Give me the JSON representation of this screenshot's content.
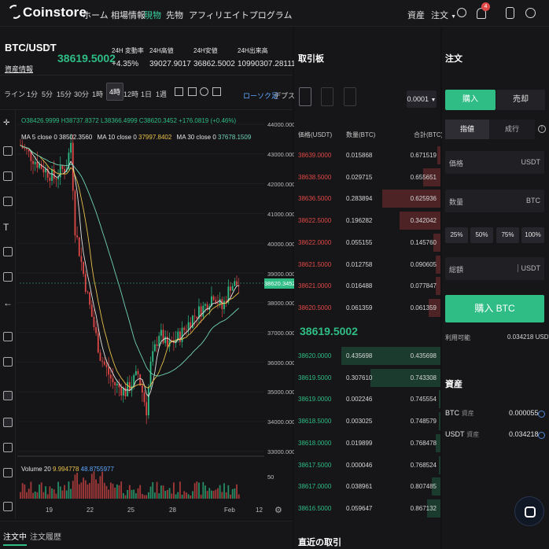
{
  "nav": {
    "logo": "Coinstore",
    "items": [
      "ホーム",
      "相場情報",
      "現物",
      "先物",
      "アフィリエイトプログラム"
    ],
    "active_index": 2,
    "right": {
      "assets": "資産",
      "orders": "注文",
      "notification_count": "4"
    }
  },
  "market": {
    "pair": "BTC/USDT",
    "asset_info": "資産情報",
    "last_price": "38619.5002",
    "stats": [
      {
        "label": "24H 変動率",
        "value": "+4.35%"
      },
      {
        "label": "24H高値",
        "value": "39027.9017"
      },
      {
        "label": "24H安値",
        "value": "36862.5002"
      },
      {
        "label": "24H出来高",
        "value": "10990307.281116"
      }
    ]
  },
  "toolbar": {
    "timeframes": [
      "ライン",
      "1分",
      "5分",
      "15分",
      "30分",
      "1時",
      "4時",
      "12時",
      "1日",
      "1週"
    ],
    "active_index": 6,
    "chart_type": "ローソク足",
    "depth": "デプス"
  },
  "chart": {
    "ohlc": "O38426.9999  H38737.8372  L38366.4999  C38620.3452  +176.0819 (+0.46%)",
    "ma": [
      {
        "label": "MA 5 close 0",
        "value": "38502.3560",
        "color": "#e4e4e4"
      },
      {
        "label": "MA 10 close 0",
        "value": "37997.8402",
        "color": "#e8c14a"
      },
      {
        "label": "MA 30 close 0",
        "value": "37678.1509",
        "color": "#6fd3b7"
      }
    ],
    "volume": {
      "label": "Volume 20",
      "v1": "9.994778",
      "v2": "48.8755977"
    },
    "y_ticks": [
      "44000.0000",
      "43000.0000",
      "42000.0000",
      "41000.0000",
      "40000.0000",
      "39000.0000",
      "38000.0000",
      "37000.0000",
      "36000.0000",
      "35000.0000",
      "34000.0000",
      "33000.0000"
    ],
    "current_price_tag": "38620.3452",
    "vol_ticks": [
      "50"
    ],
    "x_ticks": [
      "19",
      "22",
      "25",
      "28",
      "Feb",
      "12"
    ]
  },
  "bottom_tabs": [
    "注文中",
    "注文履歴"
  ],
  "orderbook": {
    "title": "取引板",
    "precision": "0.0001",
    "headers": [
      "価格(USDT)",
      "数量(BTC)",
      "合計(BTC)"
    ],
    "asks": [
      {
        "price": "38639.0000",
        "amount": "0.015868",
        "total": "0.671519",
        "depth": 0.02
      },
      {
        "price": "38638.5000",
        "amount": "0.029715",
        "total": "0.655651",
        "depth": 0.12
      },
      {
        "price": "38636.5000",
        "amount": "0.283894",
        "total": "0.625936",
        "depth": 0.4
      },
      {
        "price": "38622.5000",
        "amount": "0.196282",
        "total": "0.342042",
        "depth": 0.28
      },
      {
        "price": "38622.0000",
        "amount": "0.055155",
        "total": "0.145760",
        "depth": 0.05
      },
      {
        "price": "38621.5000",
        "amount": "0.012758",
        "total": "0.090605",
        "depth": 0.03
      },
      {
        "price": "38621.0000",
        "amount": "0.016488",
        "total": "0.077847",
        "depth": 0.03
      },
      {
        "price": "38620.5000",
        "amount": "0.061359",
        "total": "0.061359",
        "depth": 0.08
      }
    ],
    "mid_price": "38619.5002",
    "bids": [
      {
        "price": "38620.0000",
        "amount": "0.435698",
        "total": "0.435698",
        "depth": 0.68
      },
      {
        "price": "38619.5000",
        "amount": "0.307610",
        "total": "0.743308",
        "depth": 0.48
      },
      {
        "price": "38619.0000",
        "amount": "0.002246",
        "total": "0.745554",
        "depth": 0.01
      },
      {
        "price": "38618.5000",
        "amount": "0.003025",
        "total": "0.748579",
        "depth": 0.01
      },
      {
        "price": "38618.0000",
        "amount": "0.019899",
        "total": "0.768478",
        "depth": 0.03
      },
      {
        "price": "38617.5000",
        "amount": "0.000046",
        "total": "0.768524",
        "depth": 0.01
      },
      {
        "price": "38617.0000",
        "amount": "0.038961",
        "total": "0.807485",
        "depth": 0.06
      },
      {
        "price": "38616.5000",
        "amount": "0.059647",
        "total": "0.867132",
        "depth": 0.09
      }
    ],
    "recent_trades_title": "直近の取引"
  },
  "order_panel": {
    "title": "注文",
    "buy_tab": "購入",
    "sell_tab": "売却",
    "limit_tab": "指値",
    "market_tab": "成行",
    "price_label": "価格",
    "price_unit": "USDT",
    "amount_label": "数量",
    "amount_unit": "BTC",
    "percentages": [
      "25%",
      "50%",
      "75%",
      "100%"
    ],
    "total_label": "総額",
    "total_unit": "USDT",
    "buy_button": "購入 BTC",
    "available_label": "利用可能",
    "available_value": "0.034218 USDT",
    "assets_title": "資産",
    "assets": [
      {
        "name": "BTC",
        "sub": "資産",
        "value": "0.000055"
      },
      {
        "name": "USDT",
        "sub": "資産",
        "value": "0.034218"
      }
    ]
  }
}
